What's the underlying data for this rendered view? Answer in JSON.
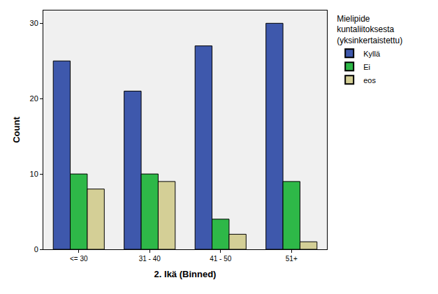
{
  "chart_data": {
    "type": "bar",
    "x_label": "2. Ikä (Binned)",
    "y_label": "Count",
    "legend_title": "Mielipide kuntaliitoksesta (yksinkertaistettu)",
    "categories": [
      "<= 30",
      "31 - 40",
      "41 - 50",
      "51+"
    ],
    "series": [
      {
        "name": "Kyllä",
        "color": "#3e58ac",
        "values": [
          25,
          21,
          27,
          30
        ]
      },
      {
        "name": "Ei",
        "color": "#2eb848",
        "values": [
          10,
          10,
          4,
          9
        ]
      },
      {
        "name": "eos",
        "color": "#d4cf96",
        "values": [
          8,
          9,
          2,
          1
        ]
      }
    ],
    "ylim": [
      0,
      31.7
    ],
    "yticks": [
      0,
      10,
      20,
      30
    ],
    "grid": false,
    "legend": "right"
  }
}
